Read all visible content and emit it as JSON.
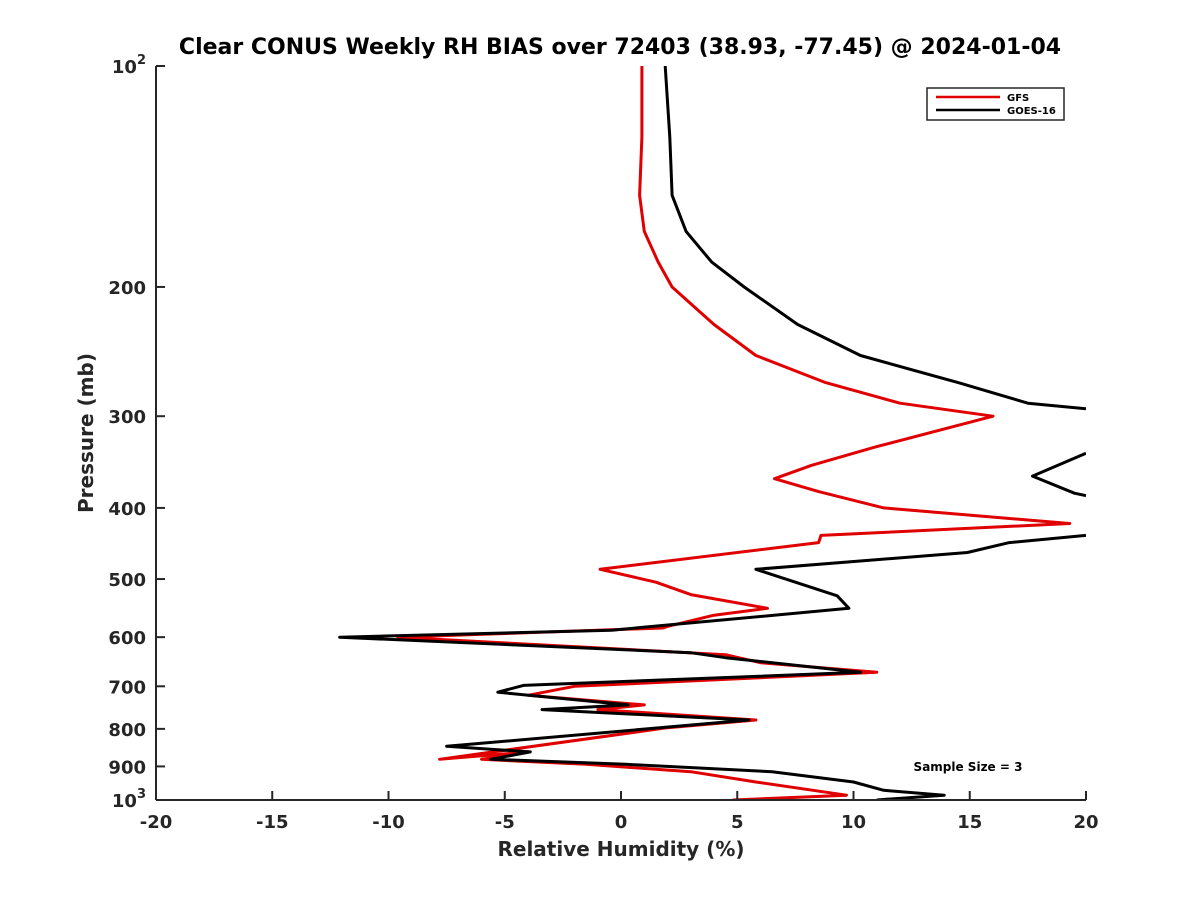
{
  "chart_data": {
    "type": "line",
    "title": "Clear CONUS Weekly RH BIAS over 72403 (38.93, -77.45) @ 2024-01-04",
    "xlabel": "Relative Humidity (%)",
    "ylabel": "Pressure (mb)",
    "xlim": [
      -20,
      20
    ],
    "ylim": [
      100,
      1000
    ],
    "y_scale": "log",
    "y_reversed": true,
    "grid": false,
    "legend_position": "top-right",
    "x_ticks": [
      {
        "value": -20,
        "label": "-20"
      },
      {
        "value": -15,
        "label": "-15"
      },
      {
        "value": -10,
        "label": "-10"
      },
      {
        "value": -5,
        "label": "-5"
      },
      {
        "value": 0,
        "label": "0"
      },
      {
        "value": 5,
        "label": "5"
      },
      {
        "value": 10,
        "label": "10"
      },
      {
        "value": 15,
        "label": "15"
      },
      {
        "value": 20,
        "label": "20"
      }
    ],
    "y_ticks": [
      {
        "value": 100,
        "base": "10",
        "exp": "2"
      },
      {
        "value": 200,
        "base": "200",
        "exp": ""
      },
      {
        "value": 300,
        "base": "300",
        "exp": ""
      },
      {
        "value": 400,
        "base": "400",
        "exp": ""
      },
      {
        "value": 500,
        "base": "500",
        "exp": ""
      },
      {
        "value": 600,
        "base": "600",
        "exp": ""
      },
      {
        "value": 700,
        "base": "700",
        "exp": ""
      },
      {
        "value": 800,
        "base": "800",
        "exp": ""
      },
      {
        "value": 900,
        "base": "900",
        "exp": ""
      },
      {
        "value": 1000,
        "base": "10",
        "exp": "3"
      }
    ],
    "series": [
      {
        "name": "GFS",
        "color": "#e00000",
        "points": [
          [
            0.9,
            100
          ],
          [
            0.9,
            125
          ],
          [
            0.8,
            150
          ],
          [
            1.0,
            168
          ],
          [
            1.6,
            185
          ],
          [
            2.2,
            200
          ],
          [
            4.0,
            225
          ],
          [
            5.8,
            248
          ],
          [
            8.8,
            270
          ],
          [
            12.0,
            288
          ],
          [
            16.0,
            300
          ],
          [
            11.0,
            330
          ],
          [
            8.2,
            350
          ],
          [
            6.6,
            365
          ],
          [
            8.5,
            380
          ],
          [
            11.3,
            400
          ],
          [
            19.3,
            420
          ],
          [
            8.6,
            436
          ],
          [
            8.5,
            446
          ],
          [
            -0.9,
            485
          ],
          [
            1.5,
            505
          ],
          [
            3.0,
            525
          ],
          [
            6.3,
            548
          ],
          [
            4.0,
            560
          ],
          [
            2.0,
            580
          ],
          [
            1.8,
            583
          ],
          [
            -9.6,
            600
          ],
          [
            4.5,
            634
          ],
          [
            6.0,
            650
          ],
          [
            11.0,
            670
          ],
          [
            -2.0,
            700
          ],
          [
            -4.0,
            720
          ],
          [
            1.0,
            742
          ],
          [
            -1.0,
            753
          ],
          [
            5.8,
            778
          ],
          [
            2.0,
            797
          ],
          [
            -7.8,
            880
          ],
          [
            -4.0,
            860
          ],
          [
            -6.0,
            880
          ],
          [
            -1.5,
            894
          ],
          [
            3.0,
            915
          ],
          [
            5.8,
            945
          ],
          [
            9.7,
            985
          ],
          [
            4.8,
            1000
          ]
        ]
      },
      {
        "name": "GOES-16",
        "color": "#000000",
        "points": [
          [
            1.9,
            100
          ],
          [
            2.1,
            125
          ],
          [
            2.2,
            150
          ],
          [
            2.8,
            168
          ],
          [
            3.9,
            185
          ],
          [
            5.3,
            200
          ],
          [
            7.6,
            225
          ],
          [
            10.3,
            248
          ],
          [
            14.5,
            270
          ],
          [
            17.5,
            288
          ],
          [
            20.0,
            293
          ]
        ]
      }
    ],
    "extra_segments": [
      {
        "series": "GOES-16",
        "points": [
          [
            20.0,
            337
          ],
          [
            17.7,
            362
          ],
          [
            19.5,
            382
          ],
          [
            20.0,
            385
          ]
        ]
      },
      {
        "series": "GOES-16",
        "points": [
          [
            20.0,
            436
          ],
          [
            16.7,
            446
          ],
          [
            14.9,
            460
          ],
          [
            5.8,
            485
          ],
          [
            7.5,
            505
          ],
          [
            9.3,
            527
          ],
          [
            9.8,
            548
          ],
          [
            -0.4,
            587
          ],
          [
            -12.1,
            600
          ],
          [
            3.0,
            630
          ],
          [
            4.5,
            640
          ],
          [
            10.3,
            670
          ],
          [
            -4.2,
            698
          ],
          [
            -5.3,
            713
          ],
          [
            0.3,
            742
          ],
          [
            -3.4,
            753
          ],
          [
            5.5,
            778
          ],
          [
            -7.5,
            845
          ],
          [
            -3.9,
            860
          ],
          [
            -5.6,
            880
          ],
          [
            0.2,
            894
          ],
          [
            6.5,
            915
          ],
          [
            10.0,
            945
          ],
          [
            11.3,
            970
          ],
          [
            13.9,
            985
          ],
          [
            11.0,
            1000
          ]
        ]
      }
    ],
    "annotation": "Sample Size = 3"
  }
}
